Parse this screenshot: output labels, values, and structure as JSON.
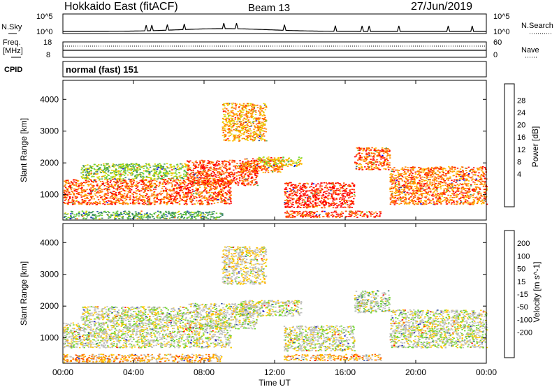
{
  "header": {
    "station": "Hokkaido East (fitACF)",
    "beam": "Beam 13",
    "date": "27/Jun/2019"
  },
  "noise_panel": {
    "left_label": "N.Sky",
    "right_label": "N.Search",
    "left_ticks": [
      "10^5",
      "10^0"
    ],
    "right_ticks": [
      "10^5",
      "10^0"
    ]
  },
  "freq_panel": {
    "left_label_1": "Freq.",
    "left_label_2": "[MHz]",
    "right_label": "Nave",
    "left_ticks": [
      "18",
      "8"
    ],
    "right_ticks": [
      "60",
      "0"
    ]
  },
  "cpid_panel": {
    "left_label": "CPID",
    "mode_text": "normal (fast) 151"
  },
  "x_axis": {
    "ticks": [
      "00:00",
      "04:00",
      "08:00",
      "12:00",
      "16:00",
      "20:00",
      "00:00"
    ],
    "title": "Time UT"
  },
  "chart_data": [
    {
      "type": "heatmap",
      "parameter": "Power",
      "colorbar_label": "Power [dB]",
      "colorbar_ticks": [
        "28",
        "24",
        "20",
        "16",
        "12",
        "8",
        "4"
      ],
      "ylabel": "Slant Range [km]",
      "yticks": [
        "4000",
        "3000",
        "2000",
        "1000"
      ],
      "ylim": [
        200,
        4600
      ],
      "xlim_hours": [
        0,
        24
      ],
      "colors": [
        "#0000ff",
        "#1c4fa6",
        "#3a8a6a",
        "#4faa4f",
        "#6fd52f",
        "#d8d800",
        "#ffc000",
        "#ff8c00",
        "#ff5500",
        "#ff0000"
      ],
      "regions": [
        {
          "t0": 0.0,
          "t1": 9.5,
          "r0": 700,
          "r1": 1500,
          "level": 0.85
        },
        {
          "t0": 1.0,
          "t1": 7.0,
          "r0": 1500,
          "r1": 2000,
          "level": 0.45
        },
        {
          "t0": 7.0,
          "t1": 11.0,
          "r0": 1300,
          "r1": 2100,
          "level": 0.9
        },
        {
          "t0": 10.0,
          "t1": 12.5,
          "r0": 1700,
          "r1": 2150,
          "level": 0.8
        },
        {
          "t0": 11.0,
          "t1": 13.5,
          "r0": 1900,
          "r1": 2200,
          "level": 0.6
        },
        {
          "t0": 12.5,
          "t1": 16.5,
          "r0": 600,
          "r1": 1400,
          "level": 0.95
        },
        {
          "t0": 16.5,
          "t1": 18.5,
          "r0": 1800,
          "r1": 2500,
          "level": 0.85
        },
        {
          "t0": 18.5,
          "t1": 24.0,
          "r0": 700,
          "r1": 1900,
          "level": 0.8
        },
        {
          "t0": 9.0,
          "t1": 11.5,
          "r0": 2700,
          "r1": 3900,
          "level": 0.7
        },
        {
          "t0": 12.5,
          "t1": 18.0,
          "r0": 300,
          "r1": 500,
          "level": 0.9
        },
        {
          "t0": 0.0,
          "t1": 9.0,
          "r0": 250,
          "r1": 500,
          "level": 0.35
        }
      ]
    },
    {
      "type": "heatmap",
      "parameter": "Velocity",
      "colorbar_label": "Velocity [m s^-1]",
      "colorbar_ticks": [
        "200",
        "100",
        "50",
        "15",
        "-15",
        "-50",
        "-100",
        "-200"
      ],
      "ylabel": "Slant Range [km]",
      "yticks": [
        "4000",
        "3000",
        "2000",
        "1000"
      ],
      "ylim": [
        200,
        4600
      ],
      "xlim_hours": [
        0,
        24
      ],
      "colors": [
        "#ff0000",
        "#ff5a00",
        "#ff9600",
        "#ffc800",
        "#c0c0c0",
        "#c0c0c0",
        "#6fd52f",
        "#3a8a6a",
        "#2a4ba0",
        "#2020c0"
      ],
      "regions": [
        {
          "t0": 0.0,
          "t1": 9.5,
          "r0": 700,
          "r1": 1500,
          "level": 0.5
        },
        {
          "t0": 1.0,
          "t1": 7.0,
          "r0": 1500,
          "r1": 2000,
          "level": 0.5
        },
        {
          "t0": 7.0,
          "t1": 11.0,
          "r0": 1300,
          "r1": 2100,
          "level": 0.5
        },
        {
          "t0": 10.0,
          "t1": 13.5,
          "r0": 1700,
          "r1": 2200,
          "level": 0.5
        },
        {
          "t0": 12.5,
          "t1": 16.5,
          "r0": 600,
          "r1": 1400,
          "level": 0.5
        },
        {
          "t0": 16.5,
          "t1": 18.5,
          "r0": 1800,
          "r1": 2500,
          "level": 0.55
        },
        {
          "t0": 18.5,
          "t1": 24.0,
          "r0": 700,
          "r1": 1900,
          "level": 0.5
        },
        {
          "t0": 9.0,
          "t1": 11.5,
          "r0": 2700,
          "r1": 3900,
          "level": 0.45
        },
        {
          "t0": 12.5,
          "t1": 18.0,
          "r0": 300,
          "r1": 500,
          "level": 0.3
        },
        {
          "t0": 0.0,
          "t1": 9.0,
          "r0": 250,
          "r1": 500,
          "level": 0.3
        }
      ]
    }
  ]
}
